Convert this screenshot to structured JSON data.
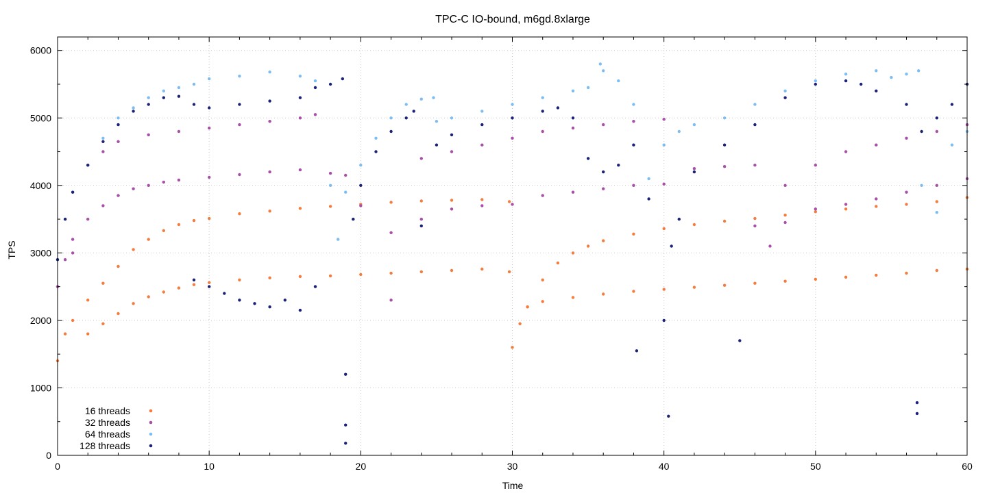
{
  "chart_data": {
    "type": "scatter",
    "title": "TPC-C IO-bound, m6gd.8xlarge",
    "xlabel": "Time",
    "ylabel": "TPS",
    "xlim": [
      0,
      60
    ],
    "ylim": [
      0,
      6200
    ],
    "x_ticks": [
      0,
      10,
      20,
      30,
      40,
      50,
      60
    ],
    "y_ticks": [
      0,
      1000,
      2000,
      3000,
      4000,
      5000,
      6000
    ],
    "grid": true,
    "legend_position": "bottom-left",
    "series": [
      {
        "name": "16 threads",
        "color": "#f47c3c",
        "x": [
          0,
          0.5,
          1,
          2,
          3,
          4,
          5,
          6,
          7,
          8,
          9,
          10,
          12,
          14,
          16,
          18,
          20,
          22,
          24,
          26,
          28,
          29.8,
          30,
          30.5,
          31,
          32,
          33,
          34,
          35,
          36,
          38,
          40,
          42,
          44,
          46,
          48,
          50,
          52,
          54,
          56,
          58,
          60,
          2,
          3,
          4,
          5,
          6,
          7,
          8,
          9,
          10,
          12,
          14,
          16,
          18,
          20,
          22,
          24,
          26,
          28,
          29.8,
          31,
          32,
          34,
          36,
          38,
          40,
          42,
          44,
          46,
          48,
          50,
          52,
          54,
          56,
          58,
          60
        ],
        "y": [
          1400,
          1800,
          2000,
          2300,
          2550,
          2800,
          3050,
          3200,
          3330,
          3420,
          3480,
          3510,
          3580,
          3620,
          3660,
          3690,
          3720,
          3750,
          3770,
          3780,
          3790,
          3760,
          1600,
          1950,
          2200,
          2600,
          2850,
          3000,
          3100,
          3180,
          3280,
          3360,
          3420,
          3470,
          3510,
          3560,
          3610,
          3650,
          3690,
          3720,
          3760,
          3820,
          1800,
          1950,
          2100,
          2250,
          2350,
          2420,
          2480,
          2530,
          2560,
          2600,
          2630,
          2650,
          2660,
          2680,
          2700,
          2720,
          2740,
          2760,
          2720,
          2200,
          2280,
          2340,
          2390,
          2430,
          2460,
          2490,
          2520,
          2550,
          2580,
          2610,
          2640,
          2670,
          2700,
          2740,
          2760
        ]
      },
      {
        "name": "32 threads",
        "color": "#a84fa8",
        "x": [
          0,
          0.5,
          1,
          2,
          3,
          4,
          5,
          6,
          7,
          8,
          10,
          12,
          14,
          16,
          18,
          19,
          20,
          22,
          24,
          26,
          28,
          30,
          32,
          34,
          36,
          38,
          40,
          42,
          44,
          46,
          47,
          48,
          50,
          52,
          54,
          56,
          58,
          60,
          1,
          2,
          3,
          4,
          6,
          8,
          10,
          12,
          14,
          16,
          17,
          22,
          24,
          26,
          28,
          30,
          32,
          34,
          36,
          38,
          40,
          46,
          48,
          50,
          52,
          54,
          56,
          58,
          60
        ],
        "y": [
          2500,
          2900,
          3200,
          3500,
          3700,
          3850,
          3950,
          4000,
          4050,
          4080,
          4120,
          4160,
          4200,
          4230,
          4180,
          4150,
          3700,
          3300,
          3500,
          3650,
          3700,
          3720,
          3850,
          3900,
          3950,
          4000,
          4020,
          4250,
          4280,
          4300,
          3100,
          3450,
          3650,
          3720,
          3800,
          3900,
          4000,
          4100,
          3000,
          4300,
          4500,
          4650,
          4750,
          4800,
          4850,
          4900,
          4950,
          5000,
          5050,
          2300,
          4400,
          4500,
          4600,
          4700,
          4800,
          4850,
          4900,
          4950,
          4980,
          3400,
          4000,
          4300,
          4500,
          4600,
          4700,
          4800,
          4900
        ]
      },
      {
        "name": "64 threads",
        "color": "#7dbdf2",
        "x": [
          0,
          0.5,
          1,
          2,
          3,
          4,
          5,
          6,
          7,
          8,
          9,
          10,
          12,
          14,
          16,
          17,
          18,
          18.5,
          19,
          20,
          21,
          22,
          23,
          24,
          24.8,
          25,
          26,
          28,
          30,
          32,
          34,
          35,
          35.8,
          36,
          37,
          38,
          39,
          40,
          41,
          42,
          44,
          46,
          48,
          50,
          52,
          54,
          55,
          56,
          56.8,
          57,
          58,
          59,
          60
        ],
        "y": [
          2900,
          3500,
          3900,
          4300,
          4700,
          5000,
          5150,
          5300,
          5400,
          5450,
          5500,
          5580,
          5620,
          5680,
          5620,
          5550,
          4000,
          3200,
          3900,
          4300,
          4700,
          5000,
          5200,
          5280,
          5300,
          4950,
          5000,
          5100,
          5200,
          5300,
          5400,
          5450,
          5800,
          5700,
          5550,
          5200,
          4100,
          4600,
          4800,
          4900,
          5000,
          5200,
          5400,
          5550,
          5650,
          5700,
          5600,
          5650,
          5700,
          4000,
          3600,
          4600,
          4800
        ]
      },
      {
        "name": "128 threads",
        "color": "#1c2278",
        "x": [
          0,
          0.5,
          1,
          2,
          3,
          4,
          5,
          6,
          7,
          8,
          9,
          10,
          12,
          14,
          16,
          17,
          18,
          18.8,
          19,
          19,
          19,
          19.5,
          20,
          21,
          22,
          23,
          23.5,
          24,
          25,
          26,
          28,
          30,
          32,
          33,
          34,
          35,
          36,
          37,
          38,
          38.2,
          39,
          40,
          40.3,
          40.5,
          41,
          42,
          44,
          45,
          46,
          48,
          50,
          52,
          53,
          54,
          56,
          56.7,
          56.7,
          57,
          58,
          59,
          60,
          9,
          10,
          11,
          12,
          13,
          14,
          15,
          16,
          17
        ],
        "y": [
          2900,
          3500,
          3900,
          4300,
          4650,
          4900,
          5100,
          5200,
          5300,
          5320,
          5200,
          5150,
          5200,
          5250,
          5300,
          5450,
          5500,
          5580,
          1200,
          450,
          180,
          3500,
          4000,
          4500,
          4800,
          5000,
          5100,
          3400,
          4600,
          4750,
          4900,
          5000,
          5100,
          5150,
          5000,
          4400,
          4200,
          4300,
          4600,
          1550,
          3800,
          2000,
          580,
          3100,
          3500,
          4200,
          4600,
          1700,
          4900,
          5300,
          5500,
          5550,
          5500,
          5400,
          5200,
          780,
          620,
          4800,
          5000,
          5200,
          5500,
          2600,
          2500,
          2400,
          2300,
          2250,
          2200,
          2300,
          2150,
          2500
        ]
      }
    ]
  }
}
